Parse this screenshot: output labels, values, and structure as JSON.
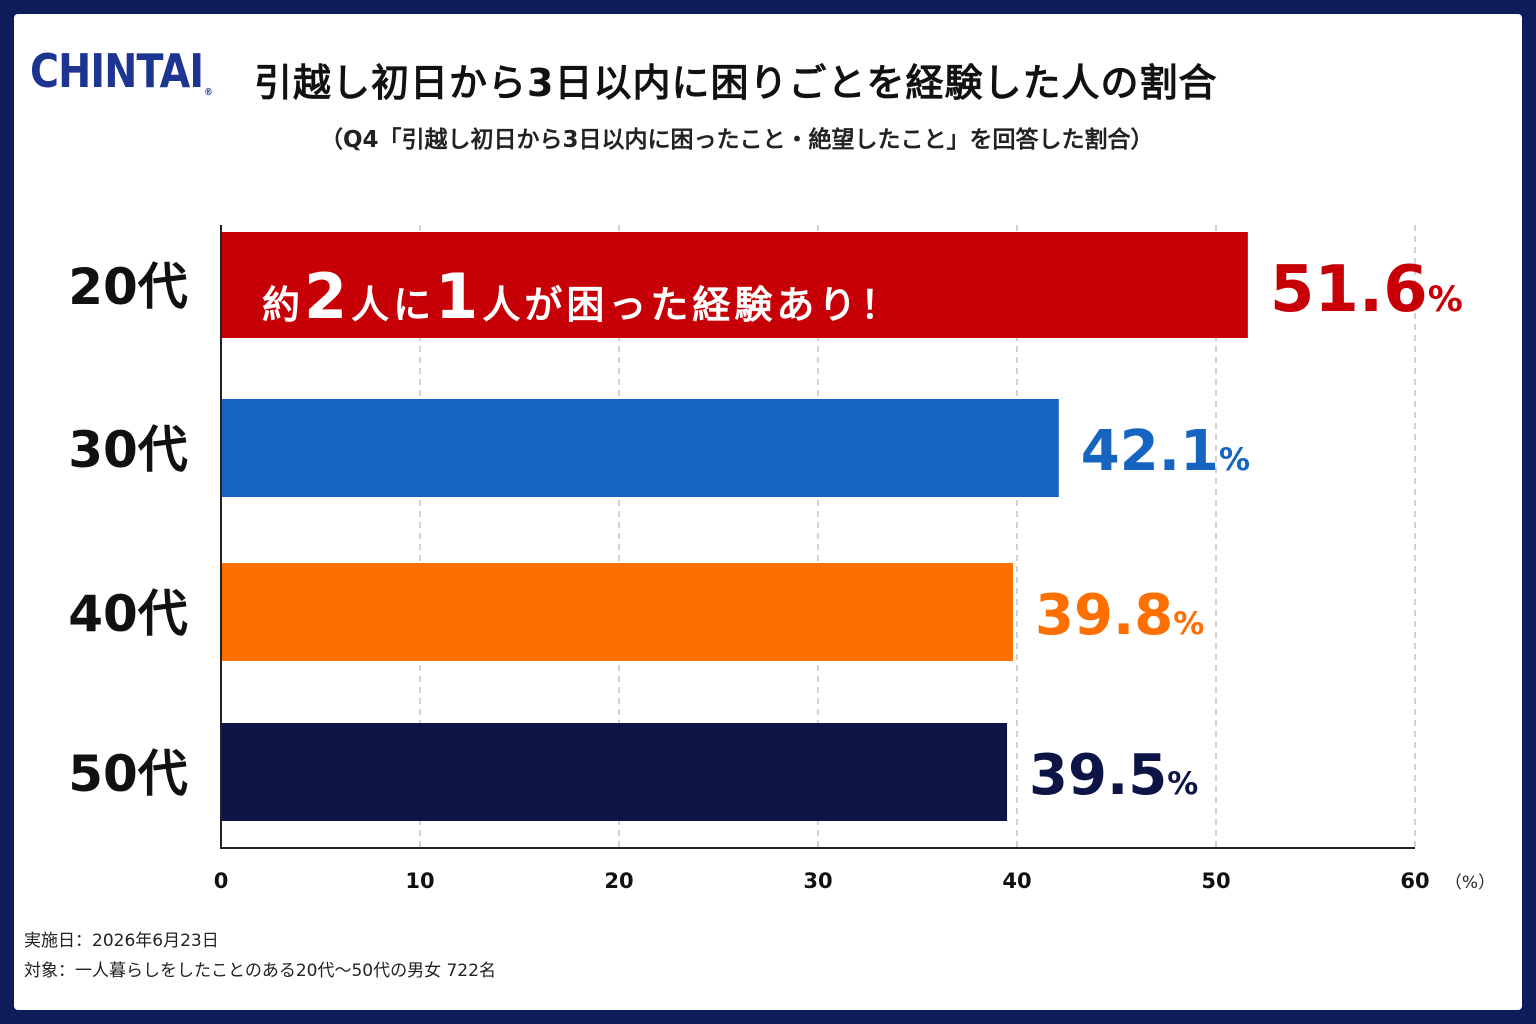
{
  "logo": {
    "text": "CHINTAI",
    "mark": "®"
  },
  "title": "引越し初日から3日以内に困りごとを経験した人の割合",
  "subtitle": "（Q4「引越し初日から3日以内に困ったこと・絶望したこと」を回答した割合）",
  "footer": {
    "date": "実施日：2026年6月23日",
    "target": "対象：一人暮らしをしたことのある20代〜50代の男女 722名"
  },
  "chart_data": {
    "type": "bar",
    "orientation": "horizontal",
    "categories": [
      "20代",
      "30代",
      "40代",
      "50代"
    ],
    "values": [
      51.6,
      42.1,
      39.8,
      39.5
    ],
    "value_labels": [
      "51.6",
      "42.1",
      "39.8",
      "39.5"
    ],
    "value_unit": "%",
    "colors": [
      "#c70007",
      "#1565c0",
      "#ff6f00",
      "#0d1446"
    ],
    "xlim": [
      0,
      60
    ],
    "xticks": [
      "0",
      "10",
      "20",
      "30",
      "40",
      "50",
      "60"
    ],
    "xunit": "（%）",
    "grid": true,
    "annotation": {
      "parts": [
        {
          "text": "約",
          "big": false
        },
        {
          "text": "2",
          "big": true
        },
        {
          "text": "人に",
          "big": false
        },
        {
          "text": "1",
          "big": true
        },
        {
          "text": "人が困った経験あり！",
          "big": false
        }
      ]
    }
  }
}
